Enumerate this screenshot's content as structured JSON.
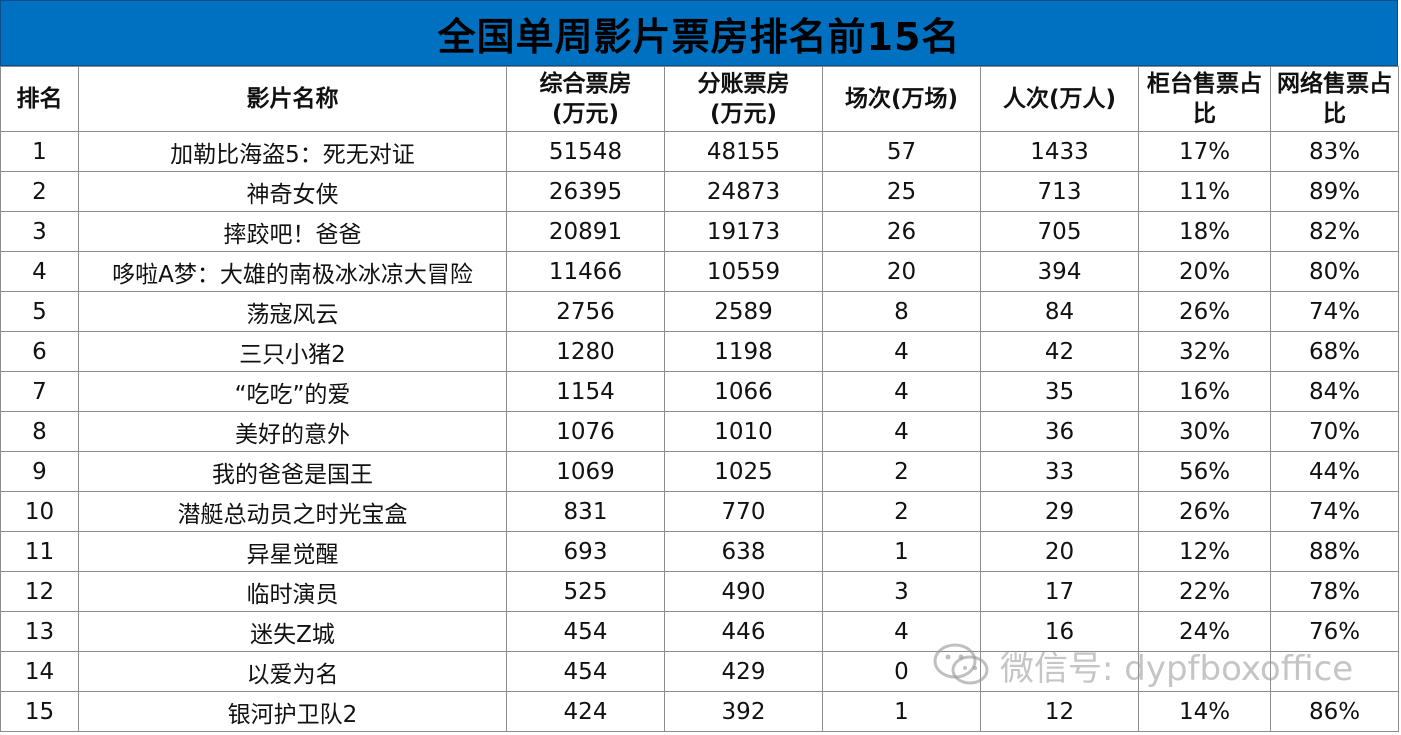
{
  "title": "全国单周影片票房排名前15名",
  "headers": {
    "rank": "排名",
    "name": "影片名称",
    "total_box": "综合票房\n(万元)",
    "split_box": "分账票房\n(万元)",
    "shows": "场次(万场)",
    "people": "人次(万人)",
    "counter": "柜台售票占比",
    "online": "网络售票占比"
  },
  "rows": [
    {
      "rank": "1",
      "name": "加勒比海盗5：死无对证",
      "total_box": "51548",
      "split_box": "48155",
      "shows": "57",
      "people": "1433",
      "counter": "17%",
      "online": "83%"
    },
    {
      "rank": "2",
      "name": "神奇女侠",
      "total_box": "26395",
      "split_box": "24873",
      "shows": "25",
      "people": "713",
      "counter": "11%",
      "online": "89%"
    },
    {
      "rank": "3",
      "name": "摔跤吧！爸爸",
      "total_box": "20891",
      "split_box": "19173",
      "shows": "26",
      "people": "705",
      "counter": "18%",
      "online": "82%"
    },
    {
      "rank": "4",
      "name": "哆啦A梦：大雄的南极冰冰凉大冒险",
      "total_box": "11466",
      "split_box": "10559",
      "shows": "20",
      "people": "394",
      "counter": "20%",
      "online": "80%"
    },
    {
      "rank": "5",
      "name": "荡寇风云",
      "total_box": "2756",
      "split_box": "2589",
      "shows": "8",
      "people": "84",
      "counter": "26%",
      "online": "74%"
    },
    {
      "rank": "6",
      "name": "三只小猪2",
      "total_box": "1280",
      "split_box": "1198",
      "shows": "4",
      "people": "42",
      "counter": "32%",
      "online": "68%"
    },
    {
      "rank": "7",
      "name": "“吃吃”的爱",
      "total_box": "1154",
      "split_box": "1066",
      "shows": "4",
      "people": "35",
      "counter": "16%",
      "online": "84%"
    },
    {
      "rank": "8",
      "name": "美好的意外",
      "total_box": "1076",
      "split_box": "1010",
      "shows": "4",
      "people": "36",
      "counter": "30%",
      "online": "70%"
    },
    {
      "rank": "9",
      "name": "我的爸爸是国王",
      "total_box": "1069",
      "split_box": "1025",
      "shows": "2",
      "people": "33",
      "counter": "56%",
      "online": "44%"
    },
    {
      "rank": "10",
      "name": "潜艇总动员之时光宝盒",
      "total_box": "831",
      "split_box": "770",
      "shows": "2",
      "people": "29",
      "counter": "26%",
      "online": "74%"
    },
    {
      "rank": "11",
      "name": "异星觉醒",
      "total_box": "693",
      "split_box": "638",
      "shows": "1",
      "people": "20",
      "counter": "12%",
      "online": "88%"
    },
    {
      "rank": "12",
      "name": "临时演员",
      "total_box": "525",
      "split_box": "490",
      "shows": "3",
      "people": "17",
      "counter": "22%",
      "online": "78%"
    },
    {
      "rank": "13",
      "name": "迷失Z城",
      "total_box": "454",
      "split_box": "446",
      "shows": "4",
      "people": "16",
      "counter": "24%",
      "online": "76%"
    },
    {
      "rank": "14",
      "name": "以爱为名",
      "total_box": "454",
      "split_box": "429",
      "shows": "0",
      "people": "",
      "counter": "",
      "online": ""
    },
    {
      "rank": "15",
      "name": "银河护卫队2",
      "total_box": "424",
      "split_box": "392",
      "shows": "1",
      "people": "12",
      "counter": "14%",
      "online": "86%"
    }
  ],
  "watermark": {
    "icon": "wechat-icon",
    "text": "微信号: dypfboxoffice"
  },
  "colors": {
    "title_background": "#0070c0"
  }
}
